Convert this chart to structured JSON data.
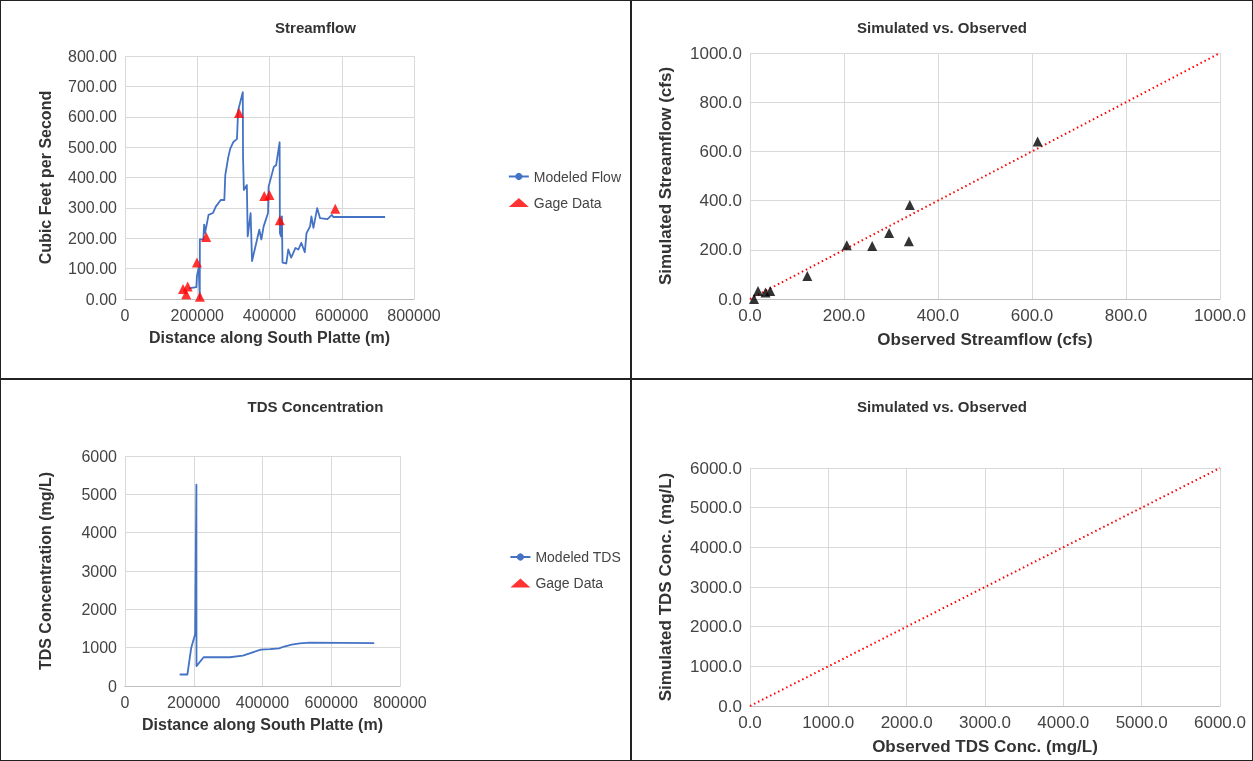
{
  "chart_data": [
    {
      "type": "line",
      "title": "Streamflow",
      "xlabel": "Distance along South Platte (m)",
      "ylabel": "Cubic Feet per Second",
      "xlim": [
        0,
        800000
      ],
      "xticks": [
        0,
        200000,
        400000,
        600000,
        800000
      ],
      "ylim": [
        0,
        800
      ],
      "yticks": [
        {
          "value": 0,
          "label": "0.00"
        },
        {
          "value": 100,
          "label": "100.00"
        },
        {
          "value": 200,
          "label": "200.00"
        },
        {
          "value": 300,
          "label": "300.00"
        },
        {
          "value": 400,
          "label": "400.00"
        },
        {
          "value": 500,
          "label": "500.00"
        },
        {
          "value": 600,
          "label": "600.00"
        },
        {
          "value": 700,
          "label": "700.00"
        },
        {
          "value": 800,
          "label": "800.00"
        }
      ],
      "grid": true,
      "legend": "right",
      "series": [
        {
          "name": "Modeled Flow",
          "marker": "none",
          "color": "#4472c4",
          "x": [
            176700,
            197500,
            199100,
            204000,
            207000,
            207200,
            216800,
            219200,
            221600,
            231300,
            243300,
            251300,
            265000,
            275000,
            277600,
            285900,
            291400,
            299400,
            310000,
            313000,
            326000,
            326800,
            329000,
            337300,
            339700,
            347700,
            351700,
            371800,
            377500,
            383800,
            395900,
            397500,
            412000,
            418300,
            428000,
            428800,
            432000,
            434400,
            436000,
            446500,
            452000,
            460000,
            472000,
            480000,
            488000,
            497700,
            502500,
            512300,
            516000,
            521600,
            532000,
            540000,
            560500,
            572500,
            576500,
            720000
          ],
          "values": [
            35,
            39,
            76,
            103,
            2,
            196,
            196,
            245,
            217,
            277,
            283,
            304,
            326,
            326,
            408,
            467,
            495,
            516,
            527,
            620,
            681,
            467,
            359,
            375,
            206,
            283,
            125,
            228,
            196,
            239,
            283,
            370,
            435,
            440,
            516,
            217,
            206,
            272,
            120,
            117,
            163,
            136,
            168,
            163,
            185,
            154,
            217,
            239,
            272,
            234,
            299,
            266,
            263,
            277,
            270,
            270
          ]
        },
        {
          "name": "Gage Data",
          "type": "scatter",
          "marker": "triangle",
          "color": "#ff0000",
          "x": [
            160600,
            169400,
            173500,
            199100,
            207200,
            224800,
            315600,
            385400,
            399900,
            428800,
            582000
          ],
          "values": [
            33,
            16,
            41,
            120,
            7,
            204,
            612,
            339,
            342,
            259,
            297
          ]
        }
      ]
    },
    {
      "type": "scatter",
      "title": "Simulated vs. Observed",
      "xlabel": "Observed Streamflow (cfs)",
      "ylabel": "Simulated Streamflow (cfs)",
      "xlim": [
        0,
        1000
      ],
      "xticks": [
        {
          "value": 0,
          "label": "0.0"
        },
        {
          "value": 200,
          "label": "200.0"
        },
        {
          "value": 400,
          "label": "400.0"
        },
        {
          "value": 600,
          "label": "600.0"
        },
        {
          "value": 800,
          "label": "800.0"
        },
        {
          "value": 1000,
          "label": "1000.0"
        }
      ],
      "ylim": [
        0,
        1000
      ],
      "yticks": [
        {
          "value": 0,
          "label": "0.0"
        },
        {
          "value": 200,
          "label": "200.0"
        },
        {
          "value": 400,
          "label": "400.0"
        },
        {
          "value": 600,
          "label": "600.0"
        },
        {
          "value": 800,
          "label": "800.0"
        },
        {
          "value": 1000,
          "label": "1000.0"
        }
      ],
      "grid": true,
      "series": [
        {
          "marker": "triangle",
          "color": "#000000",
          "x": [
            8.5,
            17,
            33,
            43,
            122,
            206,
            260,
            296,
            338,
            340,
            612
          ],
          "values": [
            0,
            33,
            26,
            33,
            94,
            218,
            215,
            268,
            235,
            382,
            640
          ]
        },
        {
          "type": "line",
          "marker": "none",
          "line_style": "dotted",
          "color": "#ff0000",
          "x": [
            0,
            1000
          ],
          "values": [
            0,
            1000
          ]
        }
      ]
    },
    {
      "type": "line",
      "title": "TDS Concentration",
      "xlabel": "Distance along South Platte (m)",
      "ylabel": "TDS Concentration (mg/L)",
      "xlim": [
        0,
        800000
      ],
      "xticks": [
        0,
        200000,
        400000,
        600000,
        800000
      ],
      "ylim": [
        0,
        6000
      ],
      "yticks": [
        0,
        1000,
        2000,
        3000,
        4000,
        5000,
        6000
      ],
      "grid": true,
      "legend": "right",
      "series": [
        {
          "name": "Modeled TDS",
          "marker": "none",
          "color": "#4472c4",
          "x": [
            159000,
            181500,
            192700,
            204000,
            207700,
            208000,
            228700,
            305000,
            343000,
            365000,
            395000,
            421500,
            448000,
            463000,
            485000,
            508000,
            538000,
            725000
          ],
          "values": [
            300,
            300,
            1000,
            1350,
            5250,
            520,
            750,
            750,
            790,
            860,
            950,
            960,
            980,
            1030,
            1080,
            1110,
            1130,
            1120
          ]
        },
        {
          "name": "Gage Data",
          "type": "scatter",
          "marker": "triangle",
          "color": "#ff0000"
        }
      ]
    },
    {
      "type": "line",
      "title": "Simulated vs. Observed",
      "xlabel": "Observed TDS Conc. (mg/L)",
      "ylabel": "Simulated TDS Conc. (mg/L)",
      "xlim": [
        0,
        6000
      ],
      "xticks": [
        {
          "value": 0,
          "label": "0.0"
        },
        {
          "value": 1000,
          "label": "1000.0"
        },
        {
          "value": 2000,
          "label": "2000.0"
        },
        {
          "value": 3000,
          "label": "3000.0"
        },
        {
          "value": 4000,
          "label": "4000.0"
        },
        {
          "value": 5000,
          "label": "5000.0"
        },
        {
          "value": 6000,
          "label": "6000.0"
        }
      ],
      "ylim": [
        0,
        6000
      ],
      "yticks": [
        {
          "value": 0,
          "label": "0.0"
        },
        {
          "value": 1000,
          "label": "1000.0"
        },
        {
          "value": 2000,
          "label": "2000.0"
        },
        {
          "value": 3000,
          "label": "3000.0"
        },
        {
          "value": 4000,
          "label": "4000.0"
        },
        {
          "value": 5000,
          "label": "5000.0"
        },
        {
          "value": 6000,
          "label": "6000.0"
        }
      ],
      "grid": true,
      "series": [
        {
          "marker": "none",
          "line_style": "dotted",
          "color": "#ff0000",
          "x": [
            0,
            6000
          ],
          "values": [
            0,
            6000
          ]
        }
      ]
    }
  ]
}
